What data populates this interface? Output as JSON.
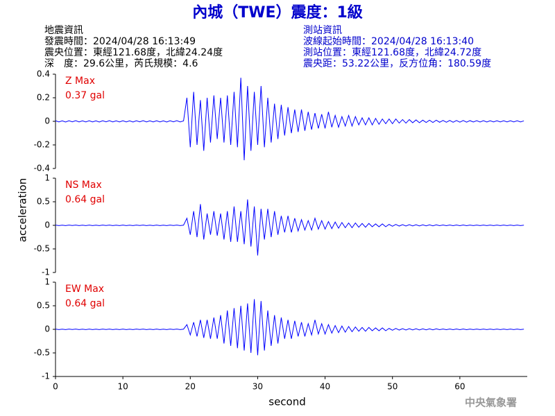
{
  "chart_data": {
    "type": "line",
    "title": "內城（TWE）震度：1級",
    "notes_left": [
      "地震資訊",
      "發震時間：2024/04/28 16:13:49",
      "震央位置：東經121.68度，北緯24.24度",
      "深　度：29.6公里，芮氏規模：4.6"
    ],
    "notes_right": [
      "測站資訊",
      "波線起始時間：2024/04/28 16:13:40",
      "測站位置：東經121.68度，北緯24.72度",
      "震央距：53.22公里，反方位角：180.59度"
    ],
    "xlabel": "second",
    "ylabel": "acceleration",
    "credit": "中央氣象署",
    "xlim": [
      0,
      70
    ],
    "xticks": [
      0,
      10,
      20,
      30,
      40,
      50,
      60
    ],
    "x": [
      0,
      0.5,
      1,
      1.5,
      2,
      2.5,
      3,
      3.5,
      4,
      4.5,
      5,
      5.5,
      6,
      6.5,
      7,
      7.5,
      8,
      8.5,
      9,
      9.5,
      10,
      10.5,
      11,
      11.5,
      12,
      12.5,
      13,
      13.5,
      14,
      14.5,
      15,
      15.5,
      16,
      16.5,
      17,
      17.5,
      18,
      18.5,
      19,
      19.5,
      20,
      20.5,
      21,
      21.5,
      22,
      22.5,
      23,
      23.5,
      24,
      24.5,
      25,
      25.5,
      26,
      26.5,
      27,
      27.5,
      28,
      28.5,
      29,
      29.5,
      30,
      30.5,
      31,
      31.5,
      32,
      32.5,
      33,
      33.5,
      34,
      34.5,
      35,
      35.5,
      36,
      36.5,
      37,
      37.5,
      38,
      38.5,
      39,
      39.5,
      40,
      40.5,
      41,
      41.5,
      42,
      42.5,
      43,
      43.5,
      44,
      44.5,
      45,
      45.5,
      46,
      46.5,
      47,
      47.5,
      48,
      48.5,
      49,
      49.5,
      50,
      50.5,
      51,
      51.5,
      52,
      52.5,
      53,
      53.5,
      54,
      54.5,
      55,
      55.5,
      56,
      56.5,
      57,
      57.5,
      58,
      58.5,
      59,
      59.5,
      60,
      60.5,
      61,
      61.5,
      62,
      62.5,
      63,
      63.5,
      64,
      64.5,
      65,
      65.5,
      66,
      66.5,
      67,
      67.5,
      68,
      68.5,
      69,
      69.5
    ],
    "series": [
      {
        "name": "Z Max",
        "annotation": "0.37 gal",
        "color": "#0000ff",
        "ylim": [
          -0.4,
          0.4
        ],
        "yticks": [
          -0.4,
          -0.2,
          0,
          0.2,
          0.4
        ],
        "values": [
          0.005,
          -0.005,
          0.004,
          -0.006,
          0.005,
          -0.004,
          0.006,
          -0.005,
          0.004,
          -0.005,
          0.005,
          -0.005,
          0.004,
          -0.006,
          0.005,
          -0.004,
          0.006,
          -0.005,
          0.004,
          -0.005,
          0.005,
          -0.005,
          0.004,
          -0.006,
          0.005,
          -0.004,
          0.006,
          -0.005,
          0.004,
          -0.005,
          0.005,
          -0.005,
          0.004,
          -0.006,
          0.005,
          -0.004,
          0.006,
          -0.005,
          0.004,
          0.2,
          -0.22,
          0.25,
          -0.2,
          0.18,
          -0.25,
          0.2,
          -0.18,
          0.22,
          -0.15,
          0.2,
          -0.18,
          0.22,
          -0.2,
          0.25,
          -0.22,
          0.37,
          -0.33,
          0.3,
          -0.25,
          0.25,
          -0.2,
          0.3,
          -0.22,
          0.2,
          -0.18,
          0.15,
          -0.15,
          0.14,
          -0.12,
          0.12,
          -0.1,
          0.1,
          -0.09,
          0.1,
          -0.08,
          0.08,
          -0.07,
          0.07,
          -0.06,
          0.06,
          -0.06,
          0.08,
          -0.05,
          0.05,
          -0.05,
          0.04,
          -0.04,
          0.05,
          -0.04,
          0.04,
          -0.03,
          0.03,
          -0.03,
          0.03,
          -0.03,
          0.025,
          -0.025,
          0.02,
          -0.02,
          0.02,
          -0.02,
          0.02,
          -0.015,
          0.015,
          -0.015,
          0.015,
          -0.012,
          0.012,
          -0.012,
          0.01,
          -0.01,
          0.01,
          -0.01,
          0.01,
          -0.008,
          0.008,
          -0.008,
          0.008,
          -0.008,
          0.007,
          -0.007,
          0.007,
          -0.007,
          0.006,
          -0.006,
          0.006,
          -0.006,
          0.006,
          -0.006,
          0.005,
          -0.005,
          0.005,
          -0.005,
          0.005,
          -0.005,
          0.005,
          -0.005,
          0.005,
          -0.005,
          0.004
        ]
      },
      {
        "name": "NS Max",
        "annotation": "0.64 gal",
        "color": "#0000ff",
        "ylim": [
          -1,
          1
        ],
        "yticks": [
          -1,
          -0.5,
          0,
          0.5,
          1
        ],
        "values": [
          0.005,
          -0.005,
          0.004,
          -0.006,
          0.005,
          -0.004,
          0.006,
          -0.005,
          0.004,
          -0.005,
          0.005,
          -0.005,
          0.004,
          -0.006,
          0.005,
          -0.004,
          0.006,
          -0.005,
          0.004,
          -0.005,
          0.005,
          -0.005,
          0.004,
          -0.006,
          0.005,
          -0.004,
          0.006,
          -0.005,
          0.004,
          -0.005,
          0.005,
          -0.005,
          0.004,
          -0.006,
          0.005,
          -0.004,
          0.006,
          -0.005,
          0.004,
          0.15,
          -0.2,
          0.3,
          -0.25,
          0.45,
          -0.3,
          0.25,
          -0.2,
          0.3,
          -0.22,
          0.25,
          -0.3,
          0.3,
          -0.35,
          0.4,
          -0.35,
          0.3,
          -0.4,
          0.55,
          -0.45,
          0.4,
          -0.64,
          0.35,
          -0.3,
          0.35,
          -0.25,
          0.3,
          -0.2,
          0.2,
          -0.15,
          0.2,
          -0.15,
          0.15,
          -0.12,
          0.12,
          -0.1,
          0.1,
          -0.1,
          0.15,
          -0.08,
          0.1,
          -0.08,
          0.08,
          -0.07,
          0.07,
          -0.06,
          0.06,
          -0.05,
          0.05,
          -0.05,
          0.05,
          -0.04,
          0.04,
          -0.04,
          0.04,
          -0.03,
          0.03,
          -0.03,
          0.03,
          -0.03,
          0.02,
          -0.02,
          0.02,
          -0.015,
          0.015,
          -0.015,
          0.015,
          -0.012,
          0.012,
          -0.012,
          0.01,
          -0.01,
          0.01,
          -0.01,
          0.01,
          -0.008,
          0.008,
          -0.008,
          0.008,
          -0.008,
          0.007,
          -0.007,
          0.007,
          -0.007,
          0.006,
          -0.006,
          0.006,
          -0.006,
          0.006,
          -0.006,
          0.005,
          -0.005,
          0.005,
          -0.005,
          0.005,
          -0.005,
          0.005,
          -0.005,
          0.005,
          -0.005,
          0.004
        ]
      },
      {
        "name": "EW Max",
        "annotation": "0.64 gal",
        "color": "#0000ff",
        "ylim": [
          -1,
          1
        ],
        "yticks": [
          -1,
          -0.5,
          0,
          0.5,
          1
        ],
        "values": [
          0.005,
          -0.005,
          0.004,
          -0.006,
          0.005,
          -0.004,
          0.006,
          -0.005,
          0.004,
          -0.005,
          0.005,
          -0.005,
          0.004,
          -0.006,
          0.005,
          -0.004,
          0.006,
          -0.005,
          0.004,
          -0.005,
          0.005,
          -0.005,
          0.004,
          -0.006,
          0.005,
          -0.004,
          0.006,
          -0.005,
          0.004,
          -0.005,
          0.005,
          -0.005,
          0.004,
          -0.006,
          0.005,
          -0.004,
          0.006,
          -0.005,
          0.004,
          0.1,
          -0.12,
          0.15,
          -0.15,
          0.2,
          -0.18,
          0.2,
          -0.2,
          0.25,
          -0.2,
          0.3,
          -0.3,
          0.4,
          -0.35,
          0.45,
          -0.4,
          0.5,
          -0.45,
          0.55,
          -0.5,
          0.64,
          -0.55,
          0.6,
          -0.45,
          0.4,
          -0.35,
          0.3,
          -0.3,
          0.25,
          -0.2,
          0.2,
          -0.2,
          0.18,
          -0.15,
          0.15,
          -0.15,
          0.12,
          -0.12,
          0.2,
          -0.1,
          0.12,
          -0.1,
          0.1,
          -0.08,
          0.08,
          -0.07,
          0.07,
          -0.06,
          0.06,
          -0.05,
          0.05,
          -0.04,
          0.04,
          -0.04,
          0.04,
          -0.03,
          0.03,
          -0.03,
          0.03,
          -0.03,
          0.02,
          -0.02,
          0.02,
          -0.015,
          0.015,
          -0.015,
          0.015,
          -0.012,
          0.012,
          -0.012,
          0.01,
          -0.01,
          0.01,
          -0.01,
          0.01,
          -0.008,
          0.008,
          -0.008,
          0.008,
          -0.008,
          0.007,
          -0.007,
          0.007,
          -0.007,
          0.006,
          -0.006,
          0.006,
          -0.006,
          0.006,
          -0.006,
          0.005,
          -0.005,
          0.005,
          -0.005,
          0.005,
          -0.005,
          0.005,
          -0.005,
          0.005,
          -0.005,
          0.004
        ]
      }
    ]
  }
}
